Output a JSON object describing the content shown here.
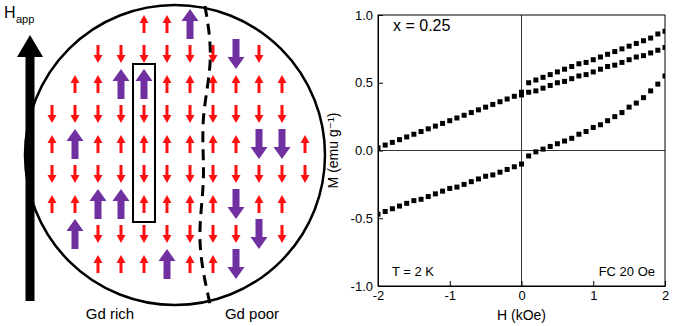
{
  "diagram": {
    "field_label": {
      "main": "H",
      "subscript": "app"
    },
    "regions": [
      "Gd rich",
      "Gd poor"
    ]
  },
  "chart_data": {
    "type": "scatter",
    "xlabel": "H (kOe)",
    "ylabel": "M (emu g⁻¹)",
    "annotations": [
      "x = 0.25",
      "T = 2 K",
      "FC 20 Oe"
    ],
    "xlim": [
      -2,
      2
    ],
    "ylim": [
      -1,
      1
    ],
    "xticks": [
      -2,
      -1,
      0,
      1,
      2
    ],
    "yticks": [
      {
        "value": -1,
        "label": "-1.0"
      },
      -0.5,
      {
        "value": 0,
        "label": "0.0"
      },
      0.5,
      {
        "value": 1,
        "label": "1.0"
      }
    ],
    "hlines": [
      0
    ],
    "vlines": [
      0
    ],
    "grid": false,
    "series": [
      {
        "color": "#000000",
        "marker": "square",
        "line_style": "none",
        "x": [
          -2.0,
          -1.9,
          -1.8,
          -1.7,
          -1.6,
          -1.5,
          -1.4,
          -1.3,
          -1.2,
          -1.1,
          -1.0,
          -0.9,
          -0.8,
          -0.7,
          -0.6,
          -0.5,
          -0.4,
          -0.3,
          -0.2,
          -0.1,
          0.0,
          0.1,
          0.2,
          0.3,
          0.4,
          0.5,
          0.6,
          0.7,
          0.8,
          0.9,
          1.0,
          1.1,
          1.2,
          1.3,
          1.4,
          1.5,
          1.6,
          1.7,
          1.8,
          1.9,
          2.0
        ],
        "values": [
          0.02,
          0.04,
          0.06,
          0.08,
          0.1,
          0.12,
          0.14,
          0.16,
          0.18,
          0.2,
          0.22,
          0.24,
          0.26,
          0.28,
          0.3,
          0.32,
          0.34,
          0.36,
          0.38,
          0.4,
          0.43,
          0.5,
          0.52,
          0.54,
          0.56,
          0.58,
          0.6,
          0.62,
          0.64,
          0.65,
          0.67,
          0.69,
          0.71,
          0.73,
          0.75,
          0.77,
          0.79,
          0.81,
          0.83,
          0.86,
          0.88
        ]
      },
      {
        "color": "#000000",
        "marker": "square",
        "line_style": "none",
        "x": [
          0.0,
          0.1,
          0.2,
          0.3,
          0.4,
          0.5,
          0.6,
          0.7,
          0.8,
          0.9,
          1.0,
          1.1,
          1.2,
          1.3,
          1.4,
          1.5,
          1.6,
          1.7,
          1.8,
          1.9,
          2.0
        ],
        "values": [
          0.41,
          0.43,
          0.44,
          0.46,
          0.48,
          0.5,
          0.51,
          0.53,
          0.55,
          0.56,
          0.58,
          0.6,
          0.62,
          0.63,
          0.65,
          0.67,
          0.69,
          0.7,
          0.72,
          0.74,
          0.76
        ]
      },
      {
        "color": "#000000",
        "marker": "square",
        "line_style": "none",
        "x": [
          -2.0,
          -1.9,
          -1.8,
          -1.7,
          -1.6,
          -1.5,
          -1.4,
          -1.3,
          -1.2,
          -1.1,
          -1.0,
          -0.9,
          -0.8,
          -0.7,
          -0.6,
          -0.5,
          -0.4,
          -0.3,
          -0.2,
          -0.1,
          0.0,
          0.1,
          0.2,
          0.3,
          0.4,
          0.5,
          0.6,
          0.7,
          0.8,
          0.9,
          1.0,
          1.1,
          1.2,
          1.3,
          1.4,
          1.5,
          1.6,
          1.7,
          1.8,
          1.9,
          2.0
        ],
        "values": [
          -0.47,
          -0.45,
          -0.43,
          -0.41,
          -0.39,
          -0.37,
          -0.36,
          -0.34,
          -0.32,
          -0.3,
          -0.28,
          -0.27,
          -0.25,
          -0.23,
          -0.21,
          -0.19,
          -0.18,
          -0.16,
          -0.14,
          -0.12,
          -0.1,
          -0.04,
          -0.01,
          0.01,
          0.03,
          0.05,
          0.07,
          0.09,
          0.12,
          0.14,
          0.17,
          0.19,
          0.22,
          0.25,
          0.28,
          0.32,
          0.35,
          0.39,
          0.44,
          0.49,
          0.55
        ]
      }
    ]
  }
}
